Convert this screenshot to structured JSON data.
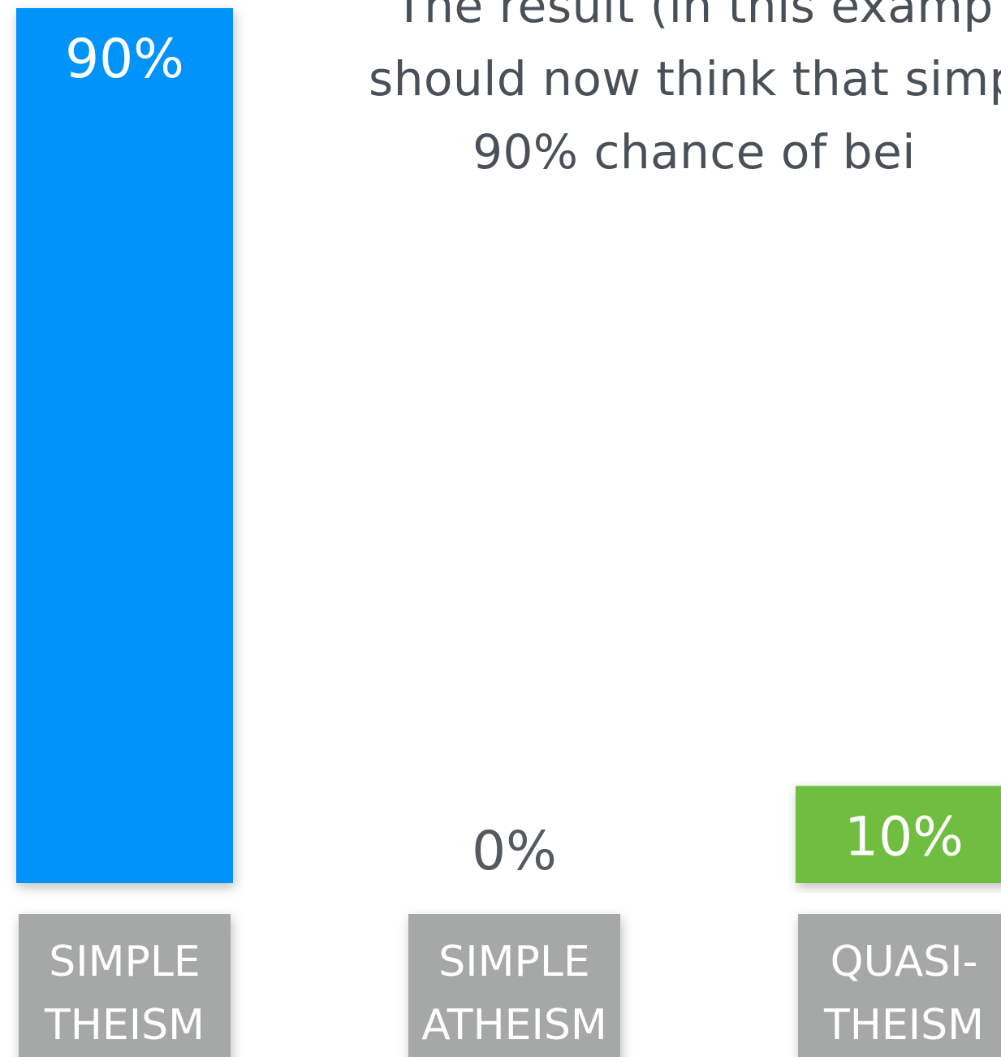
{
  "caption": {
    "lines": [
      "The result (in this examp",
      "should now think that simp",
      "90% chance of bei"
    ]
  },
  "chart_data": {
    "type": "bar",
    "categories": [
      [
        "SIMPLE",
        "THEISM"
      ],
      [
        "SIMPLE",
        "ATHEISM"
      ],
      [
        "QUASI-",
        "THEISM"
      ]
    ],
    "values": [
      90,
      0,
      10
    ],
    "value_labels": [
      "90%",
      "0%",
      "10%"
    ],
    "colors": [
      "#0394fb",
      "#9aa0a4",
      "#6fbe41"
    ],
    "label_color": "#a6a8a7",
    "ylim": [
      0,
      90
    ],
    "grid": false,
    "legend": "none"
  }
}
